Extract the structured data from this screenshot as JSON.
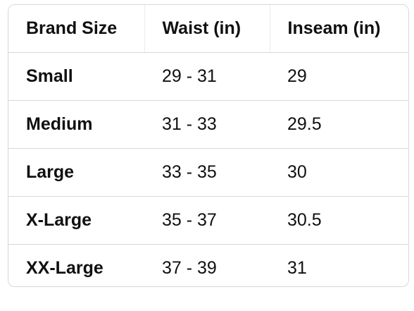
{
  "table": {
    "header": [
      "Brand Size",
      "Waist (in)",
      "Inseam (in)"
    ],
    "rows": [
      [
        "Small",
        "29 - 31",
        "29"
      ],
      [
        "Medium",
        "31 - 33",
        "29.5"
      ],
      [
        "Large",
        "33 - 35",
        "30"
      ],
      [
        "X-Large",
        "35 - 37",
        "30.5"
      ],
      [
        "XX-Large",
        "37 - 39",
        "31"
      ]
    ]
  }
}
